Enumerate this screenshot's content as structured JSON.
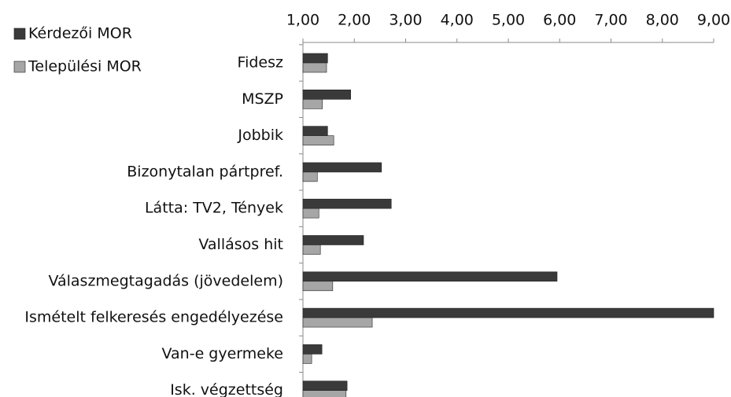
{
  "chart_data": {
    "type": "bar",
    "orientation": "horizontal",
    "categories": [
      "Fidesz",
      "MSZP",
      "Jobbik",
      "Bizonytalan pártpref.",
      "Látta: TV2, Tények",
      "Vallásos hit",
      "Válaszmegtagadás (jövedelem)",
      "Ismételt felkeresés  engedélyezése",
      "Van-e gyermeke",
      "Isk. végzettség"
    ],
    "series": [
      {
        "name": "Kérdezői MOR",
        "color": "#3a3a3a",
        "values": [
          1.48,
          1.93,
          1.48,
          2.53,
          2.72,
          2.18,
          5.95,
          9.0,
          1.37,
          1.86
        ]
      },
      {
        "name": "Települési MOR",
        "color": "#a6a6a6",
        "values": [
          1.46,
          1.38,
          1.6,
          1.28,
          1.31,
          1.34,
          1.58,
          2.35,
          1.17,
          1.84
        ]
      }
    ],
    "xlim": [
      1,
      9
    ],
    "xticks": [
      {
        "value": 1,
        "label": "1,00"
      },
      {
        "value": 2,
        "label": "2,00"
      },
      {
        "value": 3,
        "label": "3,00"
      },
      {
        "value": 4,
        "label": "4,00"
      },
      {
        "value": 5,
        "label": "5,00"
      },
      {
        "value": 6,
        "label": "6,00"
      },
      {
        "value": 7,
        "label": "7,00"
      },
      {
        "value": 8,
        "label": "8,00"
      },
      {
        "value": 9,
        "label": "9,00"
      }
    ],
    "legend": "top-left",
    "grid": false
  }
}
